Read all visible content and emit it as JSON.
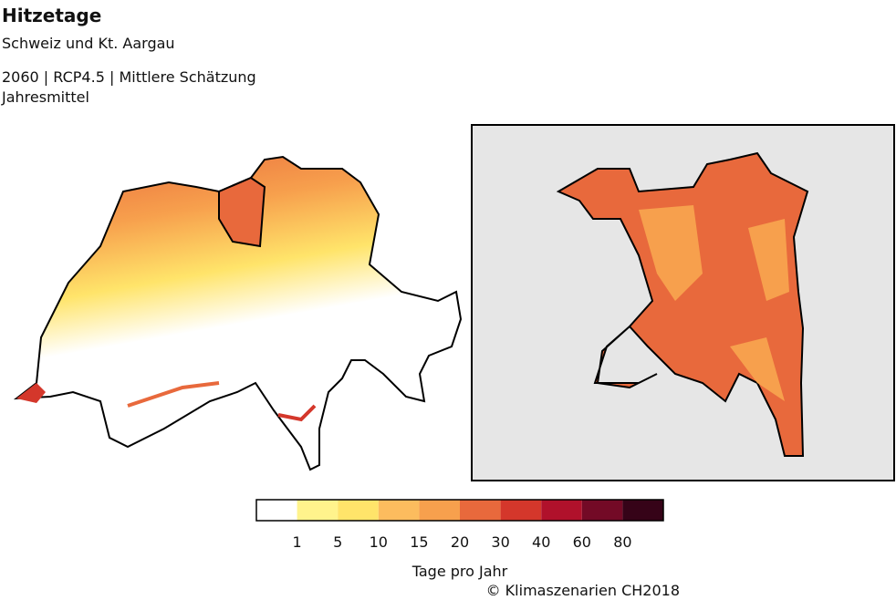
{
  "header": {
    "title": "Hitzetage",
    "subtitle": "Schweiz und Kt. Aargau",
    "year": "2060",
    "scenario": "RCP4.5",
    "estimate": "Mittlere Schätzung",
    "period": "Jahresmittel"
  },
  "legend": {
    "title": "Tage pro Jahr",
    "ticks": [
      1,
      5,
      10,
      15,
      20,
      30,
      40,
      60,
      80
    ],
    "colors": [
      "#ffffff",
      "#fff38c",
      "#ffe46a",
      "#fcbc5e",
      "#f7a04d",
      "#e8693c",
      "#d4372b",
      "#b0112b",
      "#730a26",
      "#360318"
    ]
  },
  "credit": "© Klimaszenarien CH2018"
}
